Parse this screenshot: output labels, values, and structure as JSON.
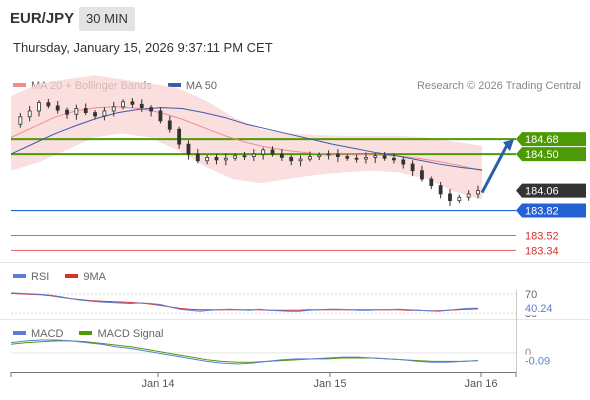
{
  "header": {
    "pair": "EUR/JPY",
    "timeframe": "30 MIN",
    "datetime": "Thursday, January 15, 2026 9:37:11 PM CET"
  },
  "legend": {
    "ma20_label": "MA 20 + Bollinger Bands",
    "ma50_label": "MA 50",
    "credit": "Research © 2026 Trading Central"
  },
  "rsi_legend": {
    "rsi_label": "RSI",
    "ma_label": "9MA"
  },
  "macd_legend": {
    "macd_label": "MACD",
    "signal_label": "MACD Signal"
  },
  "colors": {
    "ma20": "#f28c8c",
    "ma50": "#3a5da8",
    "bands": "#f9d3d3",
    "candle_up": "#ffffff",
    "candle_down": "#333333",
    "resistance": "#4e9a06",
    "support": "#2461d4",
    "target": "#e06060",
    "current": "#333333",
    "arrow": "#2a5fae",
    "rsi": "#5b7fd6",
    "rsi_ma": "#d9302b",
    "macd": "#5b7fd6",
    "macd_signal": "#4e9a06"
  },
  "chart_data": [
    {
      "type": "candlestick",
      "title": "EUR/JPY 30 MIN",
      "x_labels": [
        "Jan 14",
        "Jan 15",
        "Jan 16"
      ],
      "price_range": [
        183.2,
        185.2
      ],
      "price_path": [
        184.86,
        184.95,
        185.02,
        185.12,
        185.08,
        185.03,
        184.98,
        185.05,
        185.0,
        184.96,
        185.02,
        185.07,
        185.13,
        185.1,
        185.06,
        185.02,
        184.9,
        184.8,
        184.62,
        184.5,
        184.42,
        184.46,
        184.43,
        184.45,
        184.48,
        184.47,
        184.5,
        184.55,
        184.5,
        184.46,
        184.42,
        184.44,
        184.47,
        184.49,
        184.5,
        184.47,
        184.45,
        184.44,
        184.46,
        184.48,
        184.45,
        184.43,
        184.38,
        184.3,
        184.2,
        184.12,
        184.02,
        183.94,
        183.98,
        184.02,
        184.06
      ],
      "ma20_path": [
        184.7,
        184.82,
        184.94,
        185.02,
        185.06,
        185.07,
        185.05,
        185.0,
        184.92,
        184.82,
        184.72,
        184.64,
        184.58,
        184.54,
        184.51,
        184.5,
        184.5,
        184.49,
        184.48,
        184.45,
        184.41,
        184.36,
        184.3
      ],
      "ma50_path": [
        184.5,
        184.62,
        184.74,
        184.84,
        184.93,
        185.0,
        185.04,
        185.06,
        185.05,
        185.0,
        184.94,
        184.86,
        184.8,
        184.74,
        184.68,
        184.62,
        184.57,
        184.52,
        184.48,
        184.43,
        184.38,
        184.34,
        184.31
      ],
      "band_upper": [
        185.2,
        185.35,
        185.4,
        185.45,
        185.4,
        185.35,
        185.3,
        185.15,
        184.95,
        184.8,
        184.75,
        184.73,
        184.72,
        184.72,
        184.72,
        184.7,
        184.65,
        184.6
      ],
      "band_lower": [
        184.3,
        184.4,
        184.55,
        184.7,
        184.75,
        184.7,
        184.55,
        184.35,
        184.2,
        184.15,
        184.2,
        184.25,
        184.28,
        184.3,
        184.28,
        184.2,
        184.05,
        183.95
      ],
      "levels": [
        {
          "value": 184.68,
          "label": "184.68",
          "kind": "resistance"
        },
        {
          "value": 184.5,
          "label": "184.50",
          "kind": "resistance"
        },
        {
          "value": 184.06,
          "label": "184.06",
          "kind": "current"
        },
        {
          "value": 183.82,
          "label": "183.82",
          "kind": "support"
        },
        {
          "value": 183.52,
          "label": "183.52",
          "kind": "target"
        },
        {
          "value": 183.34,
          "label": "183.34",
          "kind": "target"
        }
      ],
      "forecast_arrow": {
        "from": 184.06,
        "to": 184.68
      }
    },
    {
      "type": "line",
      "title": "RSI",
      "y_ticks": [
        70,
        30
      ],
      "current_value_label": "40.24",
      "rsi": [
        72,
        71,
        70,
        69,
        67,
        64,
        60,
        57,
        55,
        53,
        52,
        51,
        50,
        51,
        50,
        48,
        43,
        38,
        36,
        34,
        36,
        37,
        38,
        37,
        36,
        38,
        36,
        35,
        34,
        34,
        36,
        37,
        38,
        38,
        37,
        36,
        36,
        37,
        37,
        38,
        37,
        36,
        35,
        34,
        36,
        38,
        40,
        40.24
      ],
      "rsi_ma": [
        71,
        70,
        69,
        68,
        66,
        63,
        60,
        58,
        56,
        55,
        54,
        53,
        52,
        51,
        49,
        46,
        43,
        40,
        38,
        37,
        37,
        37,
        37,
        37,
        37,
        37,
        36,
        36,
        36,
        36,
        37,
        37,
        37,
        37,
        37,
        37,
        37,
        37,
        37,
        37,
        36,
        36,
        35,
        35,
        36,
        37,
        38,
        39
      ]
    },
    {
      "type": "line",
      "title": "MACD",
      "y_ticks": [
        0
      ],
      "current_value_label": "-0.09",
      "macd": [
        0.12,
        0.14,
        0.15,
        0.15,
        0.14,
        0.12,
        0.1,
        0.07,
        0.05,
        0.02,
        -0.01,
        -0.04,
        -0.07,
        -0.1,
        -0.12,
        -0.13,
        -0.12,
        -0.1,
        -0.08,
        -0.07,
        -0.07,
        -0.06,
        -0.05,
        -0.05,
        -0.06,
        -0.07,
        -0.08,
        -0.1,
        -0.11,
        -0.11,
        -0.1,
        -0.09
      ],
      "signal": [
        0.1,
        0.12,
        0.13,
        0.14,
        0.14,
        0.13,
        0.11,
        0.09,
        0.07,
        0.04,
        0.01,
        -0.02,
        -0.05,
        -0.08,
        -0.1,
        -0.11,
        -0.11,
        -0.1,
        -0.09,
        -0.08,
        -0.07,
        -0.07,
        -0.06,
        -0.06,
        -0.06,
        -0.07,
        -0.08,
        -0.09,
        -0.1,
        -0.1,
        -0.1,
        -0.09
      ]
    }
  ]
}
